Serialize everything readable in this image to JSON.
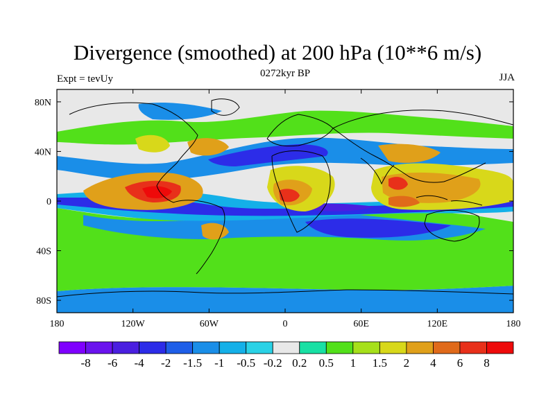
{
  "title": "Divergence (smoothed) at 200 hPa (10**6 m/s)",
  "subtitle_left": "Expt = tevUy",
  "subtitle_center": "0272kyr BP",
  "subtitle_right": "JJA",
  "map": {
    "projection": "cylindrical-equidistant",
    "lon_range": [
      -180,
      180
    ],
    "lat_range": [
      -90,
      90
    ],
    "x_ticks": [
      "180",
      "120W",
      "60W",
      "0",
      "60E",
      "120E",
      "180"
    ],
    "y_ticks": [
      "80N",
      "40N",
      "0",
      "40S",
      "80S"
    ],
    "background_color": "#e8e8e8",
    "coastline_color": "#000000"
  },
  "colorbar": {
    "labels": [
      "-8",
      "-6",
      "-4",
      "-2",
      "-1.5",
      "-1",
      "-0.5",
      "-0.2",
      "0.2",
      "0.5",
      "1",
      "1.5",
      "2",
      "4",
      "6",
      "8"
    ],
    "colors": [
      "#7f00ff",
      "#6a13ee",
      "#4a1fe0",
      "#2c2ce8",
      "#1e5ee8",
      "#1a8ee8",
      "#14b0e8",
      "#2ad2e6",
      "#e8e8e8",
      "#18e0a4",
      "#52e01a",
      "#a6e01a",
      "#d8d81a",
      "#e0a01a",
      "#e06a1a",
      "#e8301a",
      "#ee0a0a"
    ]
  }
}
